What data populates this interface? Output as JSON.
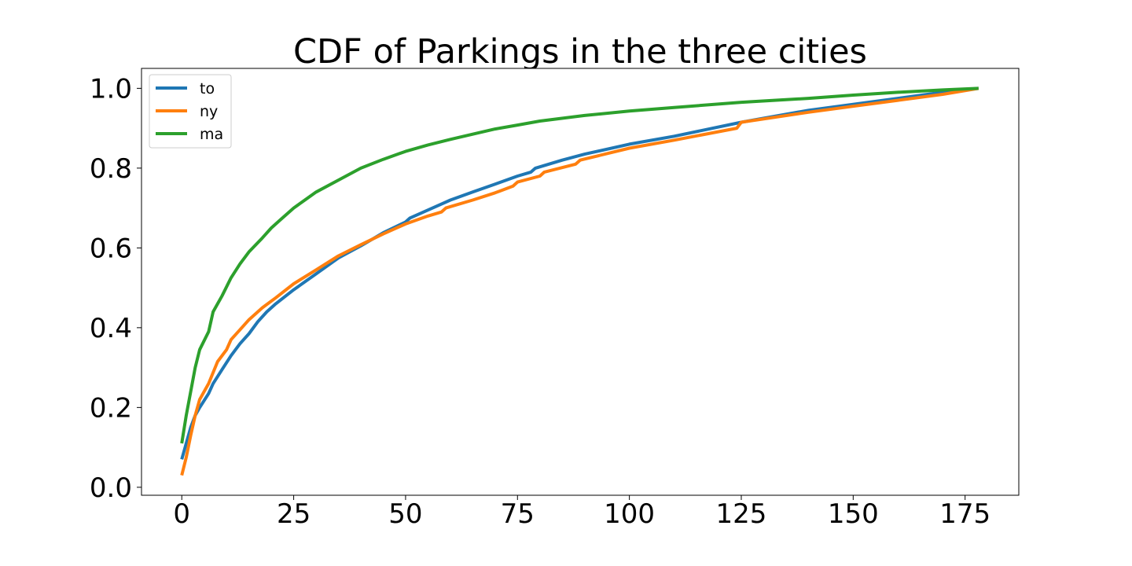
{
  "chart_data": {
    "type": "line",
    "title": "CDF of Parkings in the three cities",
    "xlabel": "",
    "ylabel": "",
    "xlim": [
      -9,
      187
    ],
    "ylim": [
      -0.02,
      1.05
    ],
    "xticks": [
      0,
      25,
      50,
      75,
      100,
      125,
      150,
      175
    ],
    "yticks": [
      0.0,
      0.2,
      0.4,
      0.6,
      0.8,
      1.0
    ],
    "xtick_labels": [
      "0",
      "25",
      "50",
      "75",
      "100",
      "125",
      "150",
      "175"
    ],
    "ytick_labels": [
      "0.0",
      "0.2",
      "0.4",
      "0.6",
      "0.8",
      "1.0"
    ],
    "grid": false,
    "legend_position": "top-left",
    "series": [
      {
        "name": "to",
        "color": "#1f77b4",
        "points": [
          [
            0,
            0.07
          ],
          [
            1,
            0.11
          ],
          [
            2,
            0.15
          ],
          [
            3,
            0.18
          ],
          [
            4,
            0.2
          ],
          [
            6,
            0.235
          ],
          [
            7,
            0.26
          ],
          [
            9,
            0.295
          ],
          [
            11,
            0.33
          ],
          [
            13,
            0.36
          ],
          [
            15,
            0.385
          ],
          [
            17,
            0.415
          ],
          [
            19,
            0.44
          ],
          [
            21,
            0.46
          ],
          [
            25,
            0.495
          ],
          [
            30,
            0.535
          ],
          [
            35,
            0.575
          ],
          [
            40,
            0.605
          ],
          [
            45,
            0.638
          ],
          [
            50,
            0.665
          ],
          [
            51,
            0.675
          ],
          [
            55,
            0.695
          ],
          [
            60,
            0.72
          ],
          [
            65,
            0.74
          ],
          [
            70,
            0.76
          ],
          [
            75,
            0.78
          ],
          [
            78,
            0.79
          ],
          [
            79,
            0.8
          ],
          [
            85,
            0.82
          ],
          [
            90,
            0.835
          ],
          [
            100,
            0.86
          ],
          [
            110,
            0.88
          ],
          [
            125,
            0.915
          ],
          [
            140,
            0.945
          ],
          [
            150,
            0.96
          ],
          [
            160,
            0.975
          ],
          [
            170,
            0.99
          ],
          [
            178,
            1.0
          ]
        ]
      },
      {
        "name": "ny",
        "color": "#ff7f0e",
        "points": [
          [
            0,
            0.03
          ],
          [
            1,
            0.075
          ],
          [
            2,
            0.13
          ],
          [
            3,
            0.18
          ],
          [
            4,
            0.22
          ],
          [
            6,
            0.26
          ],
          [
            8,
            0.315
          ],
          [
            10,
            0.345
          ],
          [
            11,
            0.37
          ],
          [
            13,
            0.395
          ],
          [
            15,
            0.42
          ],
          [
            18,
            0.45
          ],
          [
            21,
            0.475
          ],
          [
            25,
            0.51
          ],
          [
            30,
            0.545
          ],
          [
            35,
            0.58
          ],
          [
            40,
            0.608
          ],
          [
            45,
            0.635
          ],
          [
            50,
            0.66
          ],
          [
            55,
            0.68
          ],
          [
            58,
            0.69
          ],
          [
            59,
            0.7
          ],
          [
            65,
            0.72
          ],
          [
            70,
            0.738
          ],
          [
            74,
            0.755
          ],
          [
            75,
            0.765
          ],
          [
            80,
            0.78
          ],
          [
            81,
            0.79
          ],
          [
            88,
            0.81
          ],
          [
            89,
            0.82
          ],
          [
            100,
            0.85
          ],
          [
            110,
            0.87
          ],
          [
            124,
            0.9
          ],
          [
            125,
            0.915
          ],
          [
            140,
            0.94
          ],
          [
            150,
            0.955
          ],
          [
            160,
            0.97
          ],
          [
            170,
            0.985
          ],
          [
            178,
            1.0
          ]
        ]
      },
      {
        "name": "ma",
        "color": "#2ca02c",
        "points": [
          [
            0,
            0.11
          ],
          [
            1,
            0.18
          ],
          [
            2,
            0.24
          ],
          [
            3,
            0.3
          ],
          [
            4,
            0.345
          ],
          [
            6,
            0.39
          ],
          [
            7,
            0.44
          ],
          [
            9,
            0.48
          ],
          [
            11,
            0.525
          ],
          [
            13,
            0.56
          ],
          [
            15,
            0.59
          ],
          [
            18,
            0.625
          ],
          [
            20,
            0.65
          ],
          [
            22,
            0.67
          ],
          [
            25,
            0.7
          ],
          [
            30,
            0.74
          ],
          [
            35,
            0.77
          ],
          [
            40,
            0.8
          ],
          [
            45,
            0.822
          ],
          [
            50,
            0.842
          ],
          [
            55,
            0.858
          ],
          [
            60,
            0.872
          ],
          [
            65,
            0.885
          ],
          [
            70,
            0.898
          ],
          [
            75,
            0.908
          ],
          [
            80,
            0.918
          ],
          [
            90,
            0.932
          ],
          [
            100,
            0.943
          ],
          [
            110,
            0.952
          ],
          [
            125,
            0.965
          ],
          [
            140,
            0.975
          ],
          [
            150,
            0.983
          ],
          [
            160,
            0.99
          ],
          [
            170,
            0.996
          ],
          [
            178,
            1.0
          ]
        ]
      }
    ]
  }
}
